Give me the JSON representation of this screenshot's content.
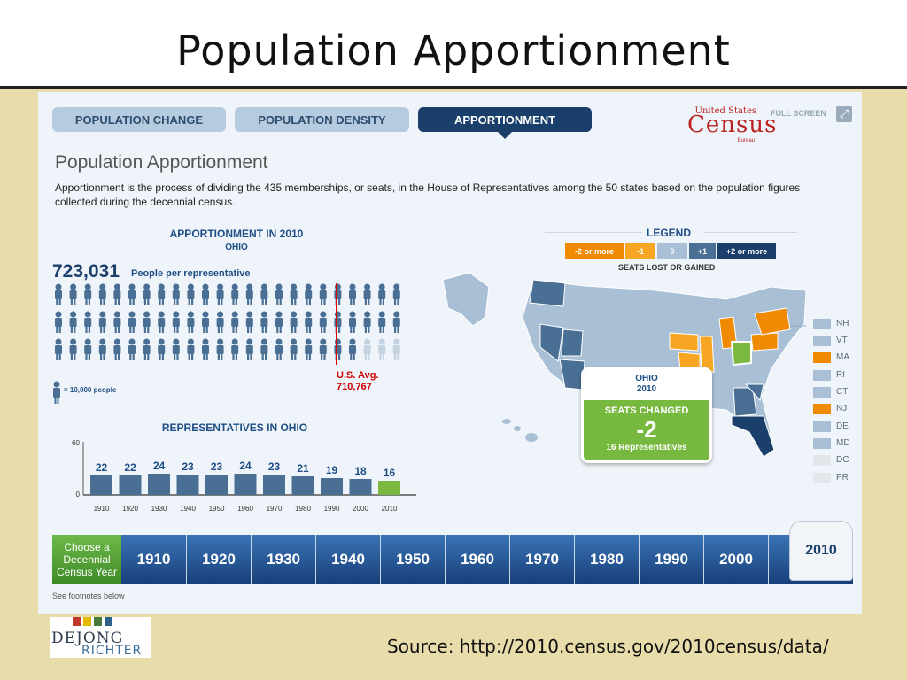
{
  "slide": {
    "title": "Population Apportionment",
    "source": "Source:  http://2010.census.gov/2010census/data/"
  },
  "logo": {
    "line1": "DEJONG",
    "line2": "RICHTER"
  },
  "tabs": [
    {
      "label": "POPULATION CHANGE",
      "active": false
    },
    {
      "label": "POPULATION DENSITY",
      "active": false
    },
    {
      "label": "APPORTIONMENT",
      "active": true
    }
  ],
  "census_logo": {
    "small": "United States",
    "big": "Census",
    "sub": "Bureau"
  },
  "fullscreen_label": "FULL SCREEN",
  "heading": "Population Apportionment",
  "intro": "Apportionment is the process of dividing the 435 memberships, or seats, in the House of Representatives among the 50 states based on the population figures collected during the decennial census.",
  "apportionment": {
    "title": "APPORTIONMENT IN 2010",
    "state": "OHIO",
    "people_per_rep_value": "723,031",
    "people_per_rep_label": "People per representative",
    "people_icons_filled": 69,
    "us_avg_label": "U.S. Avg.",
    "us_avg_value": "710,767",
    "key_label": "= 10,000 people"
  },
  "reps_chart_title": "REPRESENTATIVES IN OHIO",
  "chart_data": {
    "type": "bar",
    "title": "REPRESENTATIVES IN OHIO",
    "categories": [
      "1910",
      "1920",
      "1930",
      "1940",
      "1950",
      "1960",
      "1970",
      "1980",
      "1990",
      "2000",
      "2010"
    ],
    "values": [
      22,
      22,
      24,
      23,
      23,
      24,
      23,
      21,
      19,
      18,
      16
    ],
    "ylim": [
      0,
      60
    ],
    "yticks": [
      "60",
      "0"
    ],
    "colors": {
      "bar": "#4a6f94",
      "highlight": "#7ab840"
    }
  },
  "legend": {
    "title": "LEGEND",
    "items": [
      {
        "label": "-2 or more",
        "color": "#f08a00"
      },
      {
        "label": "-1",
        "color": "#f6a623"
      },
      {
        "label": "0",
        "color": "#a9bfd6"
      },
      {
        "label": "+1",
        "color": "#4a6f94"
      },
      {
        "label": "+2 or more",
        "color": "#1b3f6b"
      }
    ],
    "caption": "SEATS LOST OR GAINED"
  },
  "state_keys": [
    {
      "label": "NH",
      "color": "#a9bfd6"
    },
    {
      "label": "VT",
      "color": "#a9bfd6"
    },
    {
      "label": "MA",
      "color": "#f08a00"
    },
    {
      "label": "RI",
      "color": "#a9bfd6"
    },
    {
      "label": "CT",
      "color": "#a9bfd6"
    },
    {
      "label": "NJ",
      "color": "#f08a00"
    },
    {
      "label": "DE",
      "color": "#a9bfd6"
    },
    {
      "label": "MD",
      "color": "#a9bfd6"
    },
    {
      "label": "DC",
      "color": "#e3e6ea"
    },
    {
      "label": "PR",
      "color": "#e3e6ea"
    }
  ],
  "callout": {
    "state": "OHIO",
    "year": "2010",
    "label": "SEATS CHANGED",
    "value": "-2",
    "reps": "16 Representatives"
  },
  "timeline": {
    "prompt": "Choose a Decennial Census Year",
    "years": [
      "1910",
      "1920",
      "1930",
      "1940",
      "1950",
      "1960",
      "1970",
      "1980",
      "1990",
      "2000"
    ],
    "selected": "2010"
  },
  "footnote": "See footnotes below"
}
